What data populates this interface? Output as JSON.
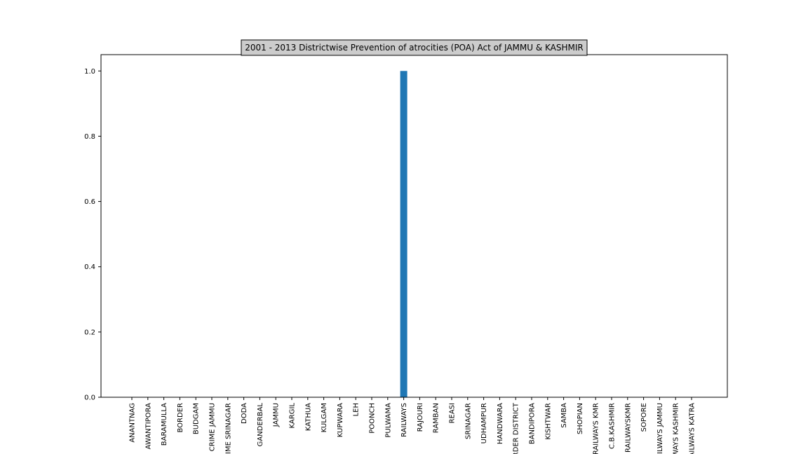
{
  "chart_data": {
    "type": "bar",
    "title": "2001 - 2013 Districtwise Prevention of atrocities (POA) Act of JAMMU & KASHMIR",
    "xlabel": "",
    "ylabel": "",
    "ylim": [
      0,
      1.05
    ],
    "yticks": [
      0.0,
      0.2,
      0.4,
      0.6,
      0.8,
      1.0
    ],
    "ytick_labels": [
      "0.0",
      "0.2",
      "0.4",
      "0.6",
      "0.8",
      "1.0"
    ],
    "grid": false,
    "categories": [
      "ANANTNAG",
      "AWANTIPORA",
      "BARAMULLA",
      "BORDER",
      "BUDGAM",
      "CRIME JAMMU",
      "CRIME SRINAGAR",
      "DODA",
      "GANDERBAL",
      "JAMMU",
      "KARGIL",
      "KATHUA",
      "KULGAM",
      "KUPWARA",
      "LEH",
      "POONCH",
      "PULWAMA",
      "RAILWAYS",
      "RAJOURI",
      "RAMBAN",
      "REASI",
      "SRINAGAR",
      "UDHAMPUR",
      "HANDWARA",
      "BORDER DISTRICT",
      "BANDIPORA",
      "KISHTWAR",
      "SAMBA",
      "SHOPIAN",
      "RAILWAYS KMR",
      "C.B.KASHMIR",
      "RAILWAYSKMR",
      "SOPORE",
      "RAILWAYS JAMMU",
      "RAILWAYS KASHMIR",
      "RAILWAYS KATRA"
    ],
    "values": [
      0,
      0,
      0,
      0,
      0,
      0,
      0,
      0,
      0,
      0,
      0,
      0,
      0,
      0,
      0,
      0,
      0,
      1,
      0,
      0,
      0,
      0,
      0,
      0,
      0,
      0,
      0,
      0,
      0,
      0,
      0,
      0,
      0,
      0,
      0,
      0
    ],
    "colors": {
      "bar": "#1f77b4",
      "title_box": "#cccccc",
      "axis": "#000000"
    }
  }
}
